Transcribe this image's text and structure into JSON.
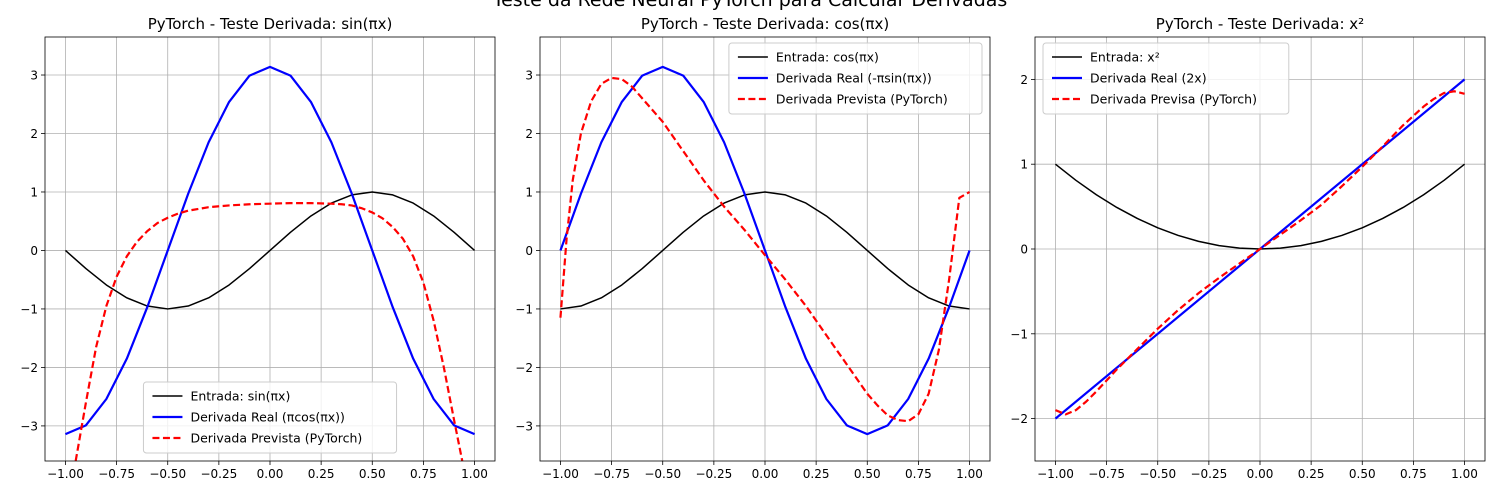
{
  "figure": {
    "suptitle": "Teste da Rede Neural PyTorch para Calcular Derivadas"
  },
  "colors": {
    "input": "#000000",
    "real": "#0000ff",
    "predicted": "#ff0000",
    "grid": "#b0b0b0"
  },
  "chart_data": [
    {
      "type": "line",
      "title": "PyTorch - Teste Derivada: sin(πx)",
      "xlim": [
        -1.1,
        1.1
      ],
      "ylim": [
        -3.6,
        3.65
      ],
      "xticks": [
        "−1.00",
        "−0.75",
        "−0.50",
        "−0.25",
        "0.00",
        "0.25",
        "0.50",
        "0.75",
        "1.00"
      ],
      "xtick_values": [
        -1,
        -0.75,
        -0.5,
        -0.25,
        0,
        0.25,
        0.5,
        0.75,
        1
      ],
      "yticks": [
        "−3",
        "−2",
        "−1",
        "0",
        "1",
        "2",
        "3"
      ],
      "ytick_values": [
        -3,
        -2,
        -1,
        0,
        1,
        2,
        3
      ],
      "grid": true,
      "legend_position": "lower center",
      "series": [
        {
          "name": "Entrada: sin(πx)",
          "style": "input",
          "x": [
            -1,
            -0.9,
            -0.8,
            -0.7,
            -0.6,
            -0.5,
            -0.4,
            -0.3,
            -0.2,
            -0.1,
            0,
            0.1,
            0.2,
            0.3,
            0.4,
            0.5,
            0.6,
            0.7,
            0.8,
            0.9,
            1
          ],
          "y": [
            0,
            -0.31,
            -0.59,
            -0.81,
            -0.95,
            -1,
            -0.95,
            -0.81,
            -0.59,
            -0.31,
            0,
            0.31,
            0.59,
            0.81,
            0.95,
            1,
            0.95,
            0.81,
            0.59,
            0.31,
            0
          ]
        },
        {
          "name": "Derivada Real (πcos(πx))",
          "style": "real",
          "x": [
            -1,
            -0.9,
            -0.8,
            -0.7,
            -0.6,
            -0.5,
            -0.4,
            -0.3,
            -0.2,
            -0.1,
            0,
            0.1,
            0.2,
            0.3,
            0.4,
            0.5,
            0.6,
            0.7,
            0.8,
            0.9,
            1
          ],
          "y": [
            -3.14,
            -2.99,
            -2.54,
            -1.85,
            -0.97,
            0,
            0.97,
            1.85,
            2.54,
            2.99,
            3.14,
            2.99,
            2.54,
            1.85,
            0.97,
            0,
            -0.97,
            -1.85,
            -2.54,
            -2.99,
            -3.14
          ]
        },
        {
          "name": "Derivada Prevista (PyTorch)",
          "style": "predicted",
          "x": [
            -0.95,
            -0.9,
            -0.85,
            -0.8,
            -0.75,
            -0.7,
            -0.65,
            -0.6,
            -0.55,
            -0.5,
            -0.45,
            -0.4,
            -0.3,
            -0.2,
            -0.1,
            0,
            0.1,
            0.2,
            0.3,
            0.35,
            0.4,
            0.45,
            0.5,
            0.55,
            0.6,
            0.65,
            0.7,
            0.75,
            0.8,
            0.85,
            0.9,
            0.94
          ],
          "y": [
            -3.6,
            -2.6,
            -1.65,
            -0.95,
            -0.45,
            -0.1,
            0.15,
            0.33,
            0.47,
            0.56,
            0.63,
            0.68,
            0.74,
            0.77,
            0.79,
            0.8,
            0.81,
            0.81,
            0.8,
            0.79,
            0.77,
            0.72,
            0.65,
            0.55,
            0.4,
            0.2,
            -0.1,
            -0.55,
            -1.2,
            -2.0,
            -2.9,
            -3.6
          ]
        }
      ]
    },
    {
      "type": "line",
      "title": "PyTorch - Teste Derivada: cos(πx)",
      "xlim": [
        -1.1,
        1.1
      ],
      "ylim": [
        -3.6,
        3.65
      ],
      "xticks": [
        "−1.00",
        "−0.75",
        "−0.50",
        "−0.25",
        "0.00",
        "0.25",
        "0.50",
        "0.75",
        "1.00"
      ],
      "xtick_values": [
        -1,
        -0.75,
        -0.5,
        -0.25,
        0,
        0.25,
        0.5,
        0.75,
        1
      ],
      "yticks": [
        "−3",
        "−2",
        "−1",
        "0",
        "1",
        "2",
        "3"
      ],
      "ytick_values": [
        -3,
        -2,
        -1,
        0,
        1,
        2,
        3
      ],
      "grid": true,
      "legend_position": "upper right",
      "series": [
        {
          "name": "Entrada: cos(πx)",
          "style": "input",
          "x": [
            -1,
            -0.9,
            -0.8,
            -0.7,
            -0.6,
            -0.5,
            -0.4,
            -0.3,
            -0.2,
            -0.1,
            0,
            0.1,
            0.2,
            0.3,
            0.4,
            0.5,
            0.6,
            0.7,
            0.8,
            0.9,
            1
          ],
          "y": [
            -1,
            -0.95,
            -0.81,
            -0.59,
            -0.31,
            0,
            0.31,
            0.59,
            0.81,
            0.95,
            1,
            0.95,
            0.81,
            0.59,
            0.31,
            0,
            -0.31,
            -0.59,
            -0.81,
            -0.95,
            -1
          ]
        },
        {
          "name": "Derivada Real (-πsin(πx))",
          "style": "real",
          "x": [
            -1,
            -0.9,
            -0.8,
            -0.7,
            -0.6,
            -0.5,
            -0.4,
            -0.3,
            -0.2,
            -0.1,
            0,
            0.1,
            0.2,
            0.3,
            0.4,
            0.5,
            0.6,
            0.7,
            0.8,
            0.9,
            1
          ],
          "y": [
            0,
            0.97,
            1.85,
            2.54,
            2.99,
            3.14,
            2.99,
            2.54,
            1.85,
            0.97,
            0,
            -0.97,
            -1.85,
            -2.54,
            -2.99,
            -3.14,
            -2.99,
            -2.54,
            -1.85,
            -0.97,
            0
          ]
        },
        {
          "name": "Derivada Prevista (PyTorch)",
          "style": "predicted",
          "x": [
            -1,
            -0.97,
            -0.94,
            -0.9,
            -0.85,
            -0.8,
            -0.75,
            -0.7,
            -0.65,
            -0.6,
            -0.5,
            -0.4,
            -0.3,
            -0.2,
            -0.1,
            0,
            0.1,
            0.2,
            0.3,
            0.4,
            0.5,
            0.55,
            0.6,
            0.65,
            0.7,
            0.75,
            0.8,
            0.85,
            0.9,
            0.95,
            1
          ],
          "y": [
            -1.15,
            0.2,
            1.2,
            2.0,
            2.55,
            2.85,
            2.95,
            2.93,
            2.8,
            2.6,
            2.2,
            1.7,
            1.2,
            0.75,
            0.35,
            -0.08,
            -0.5,
            -0.95,
            -1.45,
            -1.95,
            -2.45,
            -2.65,
            -2.82,
            -2.9,
            -2.92,
            -2.8,
            -2.45,
            -1.7,
            -0.5,
            0.9,
            1.0
          ]
        }
      ]
    },
    {
      "type": "line",
      "title": "PyTorch - Teste Derivada: x²",
      "xlim": [
        -1.1,
        1.1
      ],
      "ylim": [
        -2.5,
        2.5
      ],
      "xticks": [
        "−1.00",
        "−0.75",
        "−0.50",
        "−0.25",
        "0.00",
        "0.25",
        "0.50",
        "0.75",
        "1.00"
      ],
      "xtick_values": [
        -1,
        -0.75,
        -0.5,
        -0.25,
        0,
        0.25,
        0.5,
        0.75,
        1
      ],
      "yticks": [
        "−2",
        "−1",
        "0",
        "1",
        "2"
      ],
      "ytick_values": [
        -2,
        -1,
        0,
        1,
        2
      ],
      "grid": true,
      "legend_position": "upper left",
      "series": [
        {
          "name": "Entrada: x²",
          "style": "input",
          "x": [
            -1,
            -0.9,
            -0.8,
            -0.7,
            -0.6,
            -0.5,
            -0.4,
            -0.3,
            -0.2,
            -0.1,
            0,
            0.1,
            0.2,
            0.3,
            0.4,
            0.5,
            0.6,
            0.7,
            0.8,
            0.9,
            1
          ],
          "y": [
            1,
            0.81,
            0.64,
            0.49,
            0.36,
            0.25,
            0.16,
            0.09,
            0.04,
            0.01,
            0,
            0.01,
            0.04,
            0.09,
            0.16,
            0.25,
            0.36,
            0.49,
            0.64,
            0.81,
            1
          ]
        },
        {
          "name": "Derivada Real (2x)",
          "style": "real",
          "x": [
            -1,
            1
          ],
          "y": [
            -2,
            2
          ]
        },
        {
          "name": "Derivada Previsa (PyTorch)",
          "style": "predicted",
          "x": [
            -1,
            -0.95,
            -0.9,
            -0.85,
            -0.8,
            -0.7,
            -0.6,
            -0.5,
            -0.4,
            -0.3,
            -0.2,
            -0.1,
            0,
            0.1,
            0.2,
            0.3,
            0.4,
            0.5,
            0.6,
            0.7,
            0.8,
            0.85,
            0.9,
            0.95,
            1
          ],
          "y": [
            -1.9,
            -1.95,
            -1.9,
            -1.8,
            -1.68,
            -1.42,
            -1.18,
            -0.94,
            -0.72,
            -0.52,
            -0.34,
            -0.17,
            0,
            0.17,
            0.34,
            0.52,
            0.74,
            0.97,
            1.21,
            1.46,
            1.68,
            1.77,
            1.84,
            1.86,
            1.83
          ]
        }
      ]
    }
  ]
}
